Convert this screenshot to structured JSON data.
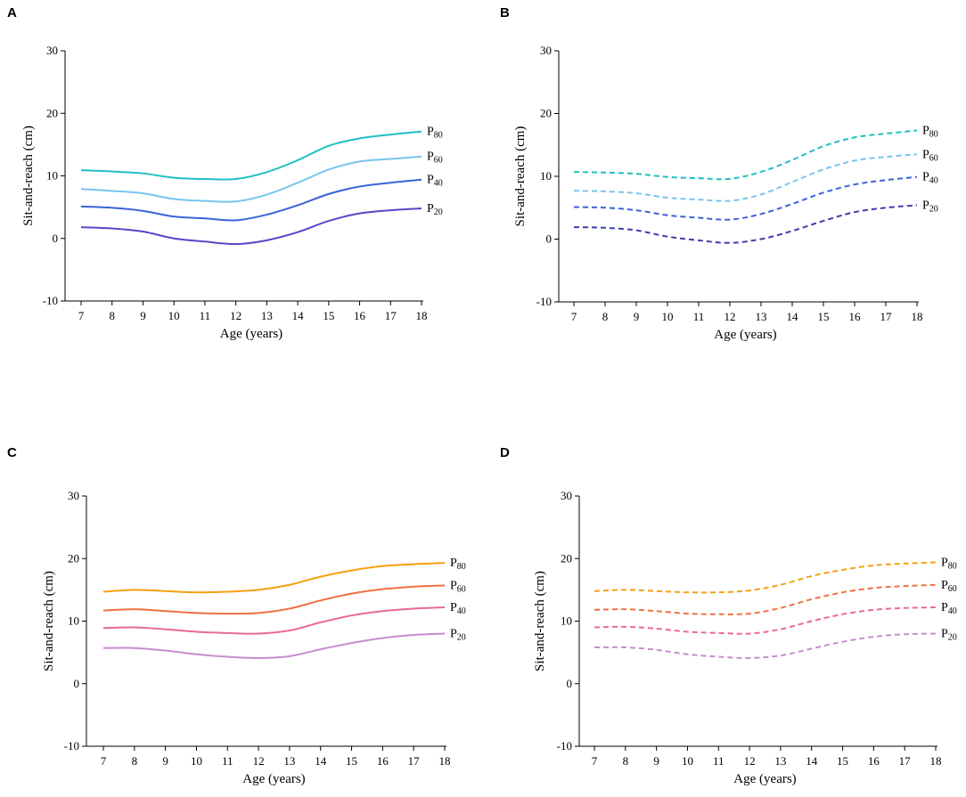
{
  "panels": [
    {
      "letter": "A"
    },
    {
      "letter": "B"
    },
    {
      "letter": "C"
    },
    {
      "letter": "D"
    }
  ],
  "chart_data": [
    {
      "type": "line",
      "panel": "A",
      "line_style": "solid",
      "xlabel": "Age (years)",
      "ylabel": "Sit-and-reach (cm)",
      "x": [
        7,
        8,
        9,
        10,
        11,
        12,
        13,
        14,
        15,
        16,
        17,
        18
      ],
      "ylim": [
        -10,
        30
      ],
      "yticks": [
        -10,
        0,
        10,
        20,
        30
      ],
      "series": [
        {
          "name": "P80",
          "prefix": "P",
          "sub": "80",
          "color": "#1fbfc3",
          "values": [
            10.9,
            10.7,
            10.4,
            9.7,
            9.5,
            9.5,
            10.6,
            12.5,
            14.8,
            16.0,
            16.6,
            17.1
          ]
        },
        {
          "name": "P60",
          "prefix": "P",
          "sub": "60",
          "color": "#79c4ee",
          "values": [
            7.9,
            7.6,
            7.2,
            6.3,
            6.0,
            5.9,
            7.0,
            8.9,
            11.0,
            12.3,
            12.7,
            13.1
          ]
        },
        {
          "name": "P40",
          "prefix": "P",
          "sub": "40",
          "color": "#3a63d8",
          "values": [
            5.1,
            4.9,
            4.4,
            3.5,
            3.2,
            2.9,
            3.8,
            5.3,
            7.1,
            8.3,
            8.9,
            9.4
          ]
        },
        {
          "name": "P20",
          "prefix": "P",
          "sub": "20",
          "color": "#5a44c8",
          "values": [
            1.8,
            1.6,
            1.1,
            0.0,
            -0.5,
            -0.9,
            -0.3,
            1.0,
            2.8,
            4.0,
            4.5,
            4.8
          ]
        }
      ]
    },
    {
      "type": "line",
      "panel": "B",
      "line_style": "dashed",
      "xlabel": "Age (years)",
      "ylabel": "Sit-and-reach (cm)",
      "x": [
        7,
        8,
        9,
        10,
        11,
        12,
        13,
        14,
        15,
        16,
        17,
        18
      ],
      "ylim": [
        -10,
        30
      ],
      "yticks": [
        -10,
        0,
        10,
        20,
        30
      ],
      "series": [
        {
          "name": "P80",
          "prefix": "P",
          "sub": "80",
          "color": "#1fbfc3",
          "values": [
            10.7,
            10.6,
            10.4,
            9.9,
            9.7,
            9.6,
            10.7,
            12.6,
            14.8,
            16.2,
            16.8,
            17.3
          ]
        },
        {
          "name": "P60",
          "prefix": "P",
          "sub": "60",
          "color": "#79c4ee",
          "values": [
            7.7,
            7.6,
            7.3,
            6.6,
            6.3,
            6.1,
            7.1,
            9.1,
            11.1,
            12.5,
            13.1,
            13.5
          ]
        },
        {
          "name": "P40",
          "prefix": "P",
          "sub": "40",
          "color": "#3a63d8",
          "values": [
            5.1,
            5.0,
            4.6,
            3.8,
            3.4,
            3.1,
            4.0,
            5.6,
            7.4,
            8.7,
            9.4,
            9.9
          ]
        },
        {
          "name": "P20",
          "prefix": "P",
          "sub": "20",
          "color": "#3f3fa8",
          "values": [
            1.9,
            1.8,
            1.4,
            0.4,
            -0.2,
            -0.6,
            0.0,
            1.3,
            2.9,
            4.3,
            5.0,
            5.4
          ]
        }
      ]
    },
    {
      "type": "line",
      "panel": "C",
      "line_style": "solid",
      "xlabel": "Age (years)",
      "ylabel": "Sit-and-reach (cm)",
      "x": [
        7,
        8,
        9,
        10,
        11,
        12,
        13,
        14,
        15,
        16,
        17,
        18
      ],
      "ylim": [
        -10,
        30
      ],
      "yticks": [
        -10,
        0,
        10,
        20,
        30
      ],
      "series": [
        {
          "name": "P80",
          "prefix": "P",
          "sub": "80",
          "color": "#f5a011",
          "values": [
            14.7,
            15.0,
            14.8,
            14.6,
            14.7,
            15.0,
            15.8,
            17.1,
            18.1,
            18.8,
            19.1,
            19.3
          ]
        },
        {
          "name": "P60",
          "prefix": "P",
          "sub": "60",
          "color": "#f07040",
          "values": [
            11.7,
            11.9,
            11.6,
            11.3,
            11.2,
            11.3,
            12.0,
            13.3,
            14.4,
            15.1,
            15.5,
            15.7
          ]
        },
        {
          "name": "P40",
          "prefix": "P",
          "sub": "40",
          "color": "#ea6a8d",
          "values": [
            8.9,
            9.0,
            8.7,
            8.3,
            8.1,
            8.0,
            8.5,
            9.8,
            10.9,
            11.6,
            12.0,
            12.2
          ]
        },
        {
          "name": "P20",
          "prefix": "P",
          "sub": "20",
          "color": "#c98bd0",
          "values": [
            5.7,
            5.7,
            5.3,
            4.7,
            4.3,
            4.1,
            4.4,
            5.5,
            6.5,
            7.3,
            7.8,
            8.0
          ]
        }
      ]
    },
    {
      "type": "line",
      "panel": "D",
      "line_style": "dashed",
      "xlabel": "Age (years)",
      "ylabel": "Sit-and-reach (cm)",
      "x": [
        7,
        8,
        9,
        10,
        11,
        12,
        13,
        14,
        15,
        16,
        17,
        18
      ],
      "ylim": [
        -10,
        30
      ],
      "yticks": [
        -10,
        0,
        10,
        20,
        30
      ],
      "series": [
        {
          "name": "P80",
          "prefix": "P",
          "sub": "80",
          "color": "#f5a011",
          "values": [
            14.8,
            15.0,
            14.8,
            14.6,
            14.6,
            14.9,
            15.8,
            17.2,
            18.2,
            18.9,
            19.2,
            19.4
          ]
        },
        {
          "name": "P60",
          "prefix": "P",
          "sub": "60",
          "color": "#f07040",
          "values": [
            11.8,
            11.9,
            11.6,
            11.2,
            11.1,
            11.2,
            12.1,
            13.5,
            14.6,
            15.3,
            15.6,
            15.8
          ]
        },
        {
          "name": "P40",
          "prefix": "P",
          "sub": "40",
          "color": "#ea6a8d",
          "values": [
            9.0,
            9.1,
            8.8,
            8.3,
            8.1,
            8.0,
            8.7,
            10.0,
            11.1,
            11.8,
            12.1,
            12.2
          ]
        },
        {
          "name": "P20",
          "prefix": "P",
          "sub": "20",
          "color": "#c98bd0",
          "values": [
            5.8,
            5.8,
            5.4,
            4.7,
            4.3,
            4.1,
            4.5,
            5.6,
            6.7,
            7.5,
            7.9,
            8.0
          ]
        }
      ]
    }
  ]
}
